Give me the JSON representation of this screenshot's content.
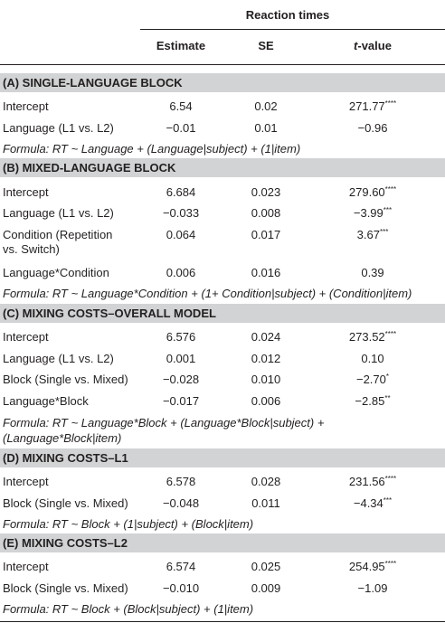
{
  "header": {
    "group": "Reaction times",
    "col_estimate": "Estimate",
    "col_se": "SE",
    "col_t_italic": "t",
    "col_t_rest": "-value"
  },
  "sections": {
    "a": {
      "title": "(A) SINGLE-LANGUAGE BLOCK",
      "rows": [
        {
          "label": "Intercept",
          "estimate": "6.54",
          "se": "0.02",
          "t": "271.77",
          "sig": "****"
        },
        {
          "label": "Language (L1 vs. L2)",
          "estimate": "−0.01",
          "se": "0.01",
          "t": "−0.96",
          "sig": ""
        }
      ],
      "formula": "Formula: RT ~ Language + (Language|subject) + (1|item)"
    },
    "b": {
      "title": "(B) MIXED-LANGUAGE BLOCK",
      "rows": [
        {
          "label": "Intercept",
          "estimate": "6.684",
          "se": "0.023",
          "t": "279.60",
          "sig": "****"
        },
        {
          "label": "Language (L1 vs. L2)",
          "estimate": "−0.033",
          "se": "0.008",
          "t": "−3.99",
          "sig": "***"
        },
        {
          "label": "Condition (Repetition",
          "label2": "vs. Switch)",
          "estimate": "0.064",
          "se": "0.017",
          "t": "3.67",
          "sig": "***"
        },
        {
          "label": "Language*Condition",
          "estimate": "0.006",
          "se": "0.016",
          "t": "0.39",
          "sig": ""
        }
      ],
      "formula": "Formula: RT ~ Language*Condition + (1+ Condition|subject) + (Condition|item)"
    },
    "c": {
      "title": "(C) MIXING COSTS–OVERALL MODEL",
      "rows": [
        {
          "label": "Intercept",
          "estimate": "6.576",
          "se": "0.024",
          "t": "273.52",
          "sig": "****"
        },
        {
          "label": "Language (L1 vs. L2)",
          "estimate": "0.001",
          "se": "0.012",
          "t": "0.10",
          "sig": ""
        },
        {
          "label": "Block (Single vs. Mixed)",
          "estimate": "−0.028",
          "se": "0.010",
          "t": "−2.70",
          "sig": "*"
        },
        {
          "label": "Language*Block",
          "estimate": "−0.017",
          "se": "0.006",
          "t": "−2.85",
          "sig": "**"
        }
      ],
      "formula": "Formula: RT ~ Language*Block + (Language*Block|subject) +",
      "formula2": "(Language*Block|item)"
    },
    "d": {
      "title": "(D) MIXING COSTS–L1",
      "rows": [
        {
          "label": "Intercept",
          "estimate": "6.578",
          "se": "0.028",
          "t": "231.56",
          "sig": "****"
        },
        {
          "label": "Block (Single vs. Mixed)",
          "estimate": "−0.048",
          "se": "0.011",
          "t": "−4.34",
          "sig": "***"
        }
      ],
      "formula": "Formula: RT ~ Block + (1|subject) + (Block|item)"
    },
    "e": {
      "title": "(E) MIXING COSTS–L2",
      "rows": [
        {
          "label": "Intercept",
          "estimate": "6.574",
          "se": "0.025",
          "t": "254.95",
          "sig": "****"
        },
        {
          "label": "Block (Single vs. Mixed)",
          "estimate": "−0.010",
          "se": "0.009",
          "t": "−1.09",
          "sig": ""
        }
      ],
      "formula": "Formula: RT ~ Block + (Block|subject) + (1|item)"
    }
  }
}
